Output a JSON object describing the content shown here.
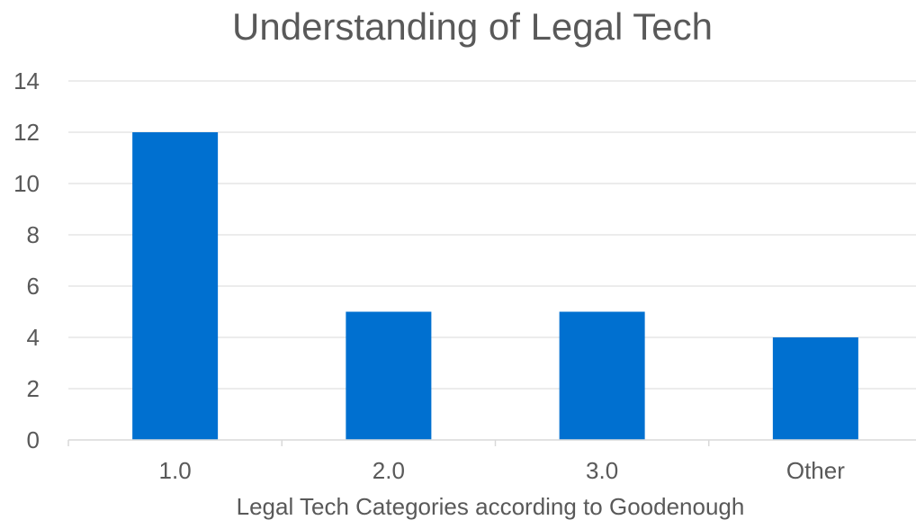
{
  "chart_data": {
    "type": "bar",
    "title": "Understanding of Legal Tech",
    "xlabel": "Legal Tech Categories according to Goodenough",
    "ylabel": "",
    "categories": [
      "1.0",
      "2.0",
      "3.0",
      "Other"
    ],
    "values": [
      12,
      5,
      5,
      4
    ],
    "ylim": [
      0,
      14
    ],
    "yticks": [
      0,
      2,
      4,
      6,
      8,
      10,
      12,
      14
    ],
    "grid": true,
    "legend": "none",
    "bar_color": "#0070D0",
    "grid_color": "#D9D9D9"
  }
}
